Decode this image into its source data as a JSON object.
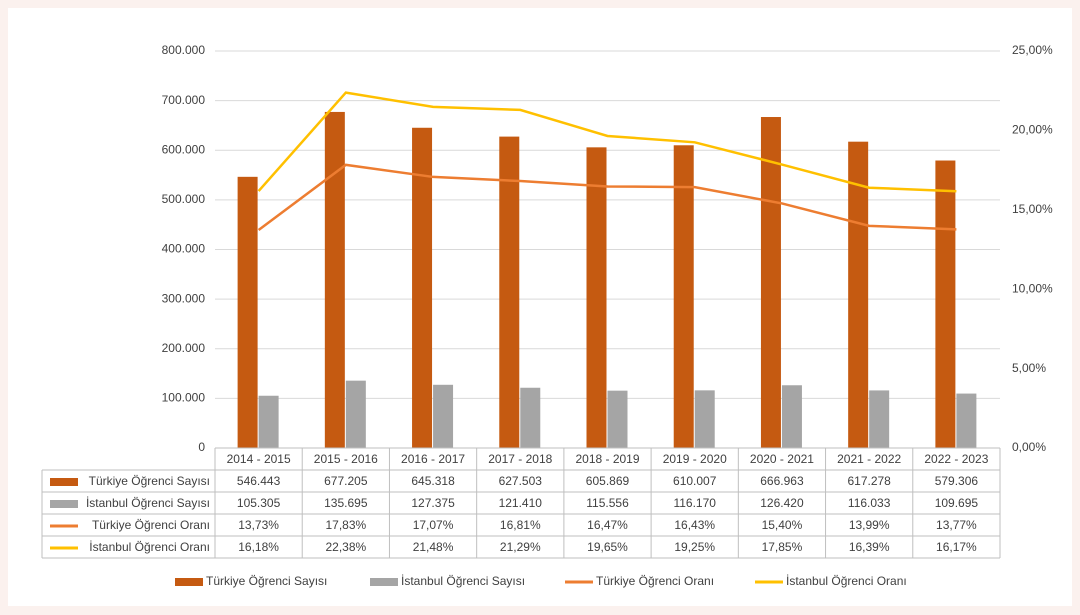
{
  "chart_data": {
    "type": "bar",
    "categories": [
      "2014 - 2015",
      "2015 - 2016",
      "2016 - 2017",
      "2017 - 2018",
      "2018 - 2019",
      "2019 - 2020",
      "2020 - 2021",
      "2021 - 2022",
      "2022 - 2023"
    ],
    "series": [
      {
        "name": "Türkiye Öğrenci Sayısı",
        "type": "bar",
        "color": "#c55a11",
        "values": [
          546443,
          677205,
          645318,
          627503,
          605869,
          610007,
          666963,
          617278,
          579306
        ],
        "value_labels": [
          "546.443",
          "677.205",
          "645.318",
          "627.503",
          "605.869",
          "610.007",
          "666.963",
          "617.278",
          "579.306"
        ]
      },
      {
        "name": "İstanbul Öğrenci Sayısı",
        "type": "bar",
        "color": "#a5a5a5",
        "values": [
          105305,
          135695,
          127375,
          121410,
          115556,
          116170,
          126420,
          116033,
          109695
        ],
        "value_labels": [
          "105.305",
          "135.695",
          "127.375",
          "121.410",
          "115.556",
          "116.170",
          "126.420",
          "116.033",
          "109.695"
        ]
      },
      {
        "name": "Türkiye Öğrenci Oranı",
        "type": "line",
        "axis": "y2",
        "color": "#ed7d31",
        "values": [
          13.73,
          17.83,
          17.07,
          16.81,
          16.47,
          16.43,
          15.4,
          13.99,
          13.77
        ],
        "value_labels": [
          "13,73%",
          "17,83%",
          "17,07%",
          "16,81%",
          "16,47%",
          "16,43%",
          "15,40%",
          "13,99%",
          "13,77%"
        ]
      },
      {
        "name": "İstanbul Öğrenci Oranı",
        "type": "line",
        "axis": "y2",
        "color": "#ffc000",
        "values": [
          16.18,
          22.38,
          21.48,
          21.29,
          19.65,
          19.25,
          17.85,
          16.39,
          16.17
        ],
        "value_labels": [
          "16,18%",
          "22,38%",
          "21,48%",
          "21,29%",
          "19,65%",
          "19,25%",
          "17,85%",
          "16,39%",
          "16,17%"
        ]
      }
    ],
    "ylim": [
      0,
      800000
    ],
    "yticks": [
      0,
      {
        "value": 100000,
        "label": "100.000"
      },
      {
        "value": 200000,
        "label": "200.000"
      },
      {
        "value": 300000,
        "label": "300.000"
      },
      {
        "value": 400000,
        "label": "400.000"
      },
      {
        "value": 500000,
        "label": "500.000"
      },
      {
        "value": 600000,
        "label": "600.000"
      },
      {
        "value": 700000,
        "label": "700.000"
      },
      {
        "value": 800000,
        "label": "800.000"
      }
    ],
    "y2lim": [
      0,
      25
    ],
    "y2ticks": [
      {
        "value": 0,
        "label": "0,00%"
      },
      {
        "value": 5,
        "label": "5,00%"
      },
      {
        "value": 10,
        "label": "10,00%"
      },
      {
        "value": 15,
        "label": "15,00%"
      },
      {
        "value": 20,
        "label": "20,00%"
      },
      {
        "value": 25,
        "label": "25,00%"
      }
    ],
    "grid": true,
    "legend": "bottom",
    "data_table": true
  }
}
